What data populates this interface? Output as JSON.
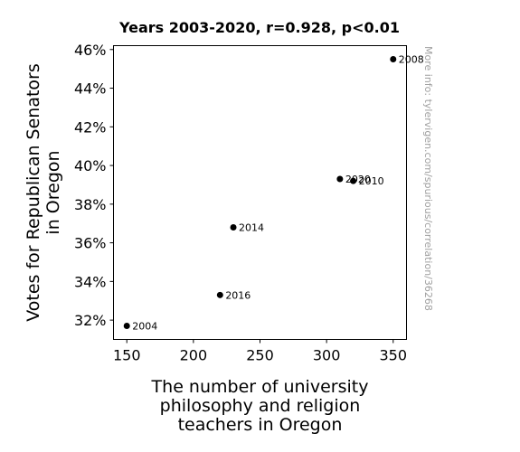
{
  "chart_data": {
    "type": "scatter",
    "title": "Years 2003-2020, r=0.928, p<0.01",
    "xlabel": [
      "The number of university",
      "philosophy and religion",
      "teachers in Oregon"
    ],
    "ylabel": [
      "Votes for Republican Senators",
      "in Oregon"
    ],
    "xlim": [
      140,
      360
    ],
    "ylim": [
      31.0,
      46.2
    ],
    "xticks": [
      150,
      200,
      250,
      300,
      350
    ],
    "yticks": [
      32,
      34,
      36,
      38,
      40,
      42,
      44,
      46
    ],
    "ytick_suffix": "%",
    "points": [
      {
        "x": 150,
        "y": 31.7,
        "label": "2004"
      },
      {
        "x": 350,
        "y": 45.5,
        "label": "2008"
      },
      {
        "x": 320,
        "y": 39.2,
        "label": "2010"
      },
      {
        "x": 230,
        "y": 36.8,
        "label": "2014"
      },
      {
        "x": 220,
        "y": 33.3,
        "label": "2016"
      },
      {
        "x": 310,
        "y": 39.3,
        "label": "2020"
      }
    ],
    "marker_color": "#000000",
    "grid": false,
    "source_note": "More info: tylervigen.com/spurious/correlation/36268"
  }
}
